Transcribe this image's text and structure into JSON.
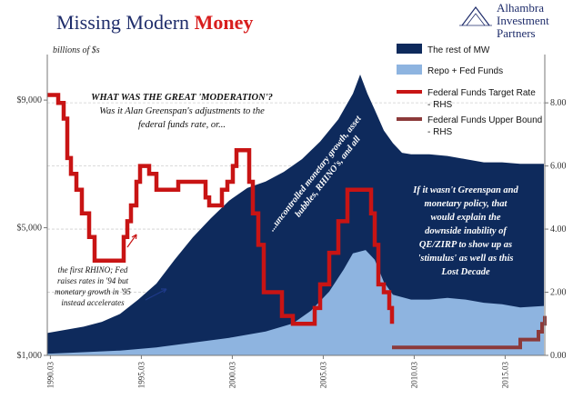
{
  "header": {
    "title_part1": "Missing Modern ",
    "title_part2": "Money",
    "brand_lines": [
      "Alhambra",
      "Investment",
      "Partners"
    ]
  },
  "chart_data": {
    "type": "area",
    "unit_label": "billions of $s",
    "left_axis": {
      "ticks": [
        "$1,000",
        "$5,000",
        "$9,000"
      ],
      "values": [
        1000,
        5000,
        9000
      ],
      "range": [
        1000,
        10200
      ]
    },
    "right_axis": {
      "ticks": [
        "0.00",
        "2.00",
        "4.00",
        "6.00",
        "8.00"
      ],
      "values": [
        0,
        2,
        4,
        6,
        8
      ],
      "range": [
        0,
        9.3
      ]
    },
    "x_ticks": [
      "1990.03",
      "1995.03",
      "2000.03",
      "2005.03",
      "2010.03",
      "2015.03"
    ],
    "x_tick_years": [
      1990.17,
      1995.17,
      2000.17,
      2005.17,
      2010.17,
      2015.17
    ],
    "x_range": [
      1990.0,
      2017.35
    ],
    "colors": {
      "rest_of_mw": "#0e2a5c",
      "repo_fed_funds": "#8eb4e0",
      "fed_target": "#c81414",
      "fed_upper": "#8c3a3a"
    },
    "legend": [
      {
        "name": "The rest of MW",
        "type": "area"
      },
      {
        "name": "Repo + Fed Funds",
        "type": "area"
      },
      {
        "name": "Federal Funds Target Rate - RHS",
        "type": "line"
      },
      {
        "name": "Federal Funds Upper Bound - RHS",
        "type": "line"
      }
    ],
    "series": [
      {
        "name": "The rest of MW",
        "axis": "left",
        "note": "total stacked level",
        "x": [
          1990.0,
          1991.0,
          1992.0,
          1993.0,
          1994.0,
          1995.0,
          1996.0,
          1997.0,
          1998.0,
          1999.0,
          2000.0,
          2001.0,
          2002.0,
          2003.0,
          2004.0,
          2005.0,
          2006.0,
          2006.8,
          2007.2,
          2007.6,
          2008.0,
          2008.5,
          2009.0,
          2009.5,
          2010.0,
          2011.0,
          2012.0,
          2013.0,
          2014.0,
          2015.0,
          2016.0,
          2017.3
        ],
        "values": [
          1700,
          1800,
          1900,
          2050,
          2300,
          2750,
          3250,
          4000,
          4700,
          5300,
          5850,
          6250,
          6450,
          6750,
          7150,
          7700,
          8400,
          9200,
          9800,
          9200,
          8700,
          8050,
          7650,
          7350,
          7300,
          7300,
          7250,
          7150,
          7050,
          7050,
          7000,
          7000
        ]
      },
      {
        "name": "Repo + Fed Funds",
        "axis": "left",
        "x": [
          1990.0,
          1992.0,
          1994.0,
          1996.0,
          1998.0,
          2000.0,
          2002.0,
          2003.5,
          2004.5,
          2005.5,
          2006.3,
          2006.8,
          2007.5,
          2008.0,
          2008.5,
          2009.0,
          2010.0,
          2011.0,
          2012.0,
          2013.0,
          2014.0,
          2015.0,
          2016.0,
          2017.3
        ],
        "values": [
          1050,
          1100,
          1150,
          1250,
          1400,
          1550,
          1750,
          2000,
          2400,
          3000,
          3700,
          4200,
          4300,
          4000,
          3300,
          2900,
          2750,
          2750,
          2800,
          2750,
          2650,
          2600,
          2500,
          2550
        ]
      },
      {
        "name": "Federal Funds Target Rate - RHS",
        "axis": "right",
        "x": [
          1990.0,
          1990.6,
          1990.9,
          1991.1,
          1991.3,
          1991.6,
          1991.9,
          1992.3,
          1992.6,
          1994.0,
          1994.2,
          1994.4,
          1994.6,
          1994.9,
          1995.1,
          1995.6,
          1996.0,
          1996.6,
          1997.2,
          1998.7,
          1998.9,
          1999.2,
          1999.6,
          1999.9,
          2000.2,
          2000.4,
          2000.9,
          2001.1,
          2001.3,
          2001.6,
          2001.9,
          2002.9,
          2003.5,
          2004.5,
          2004.7,
          2005.0,
          2005.5,
          2006.0,
          2006.5,
          2007.6,
          2007.8,
          2008.0,
          2008.2,
          2008.5,
          2008.8,
          2008.95
        ],
        "values": [
          8.25,
          8.0,
          7.5,
          6.25,
          5.75,
          5.25,
          4.5,
          3.75,
          3.0,
          3.0,
          3.75,
          4.25,
          4.75,
          5.5,
          6.0,
          5.75,
          5.25,
          5.25,
          5.5,
          5.0,
          4.75,
          4.75,
          5.25,
          5.5,
          6.0,
          6.5,
          6.5,
          5.5,
          4.5,
          3.5,
          2.0,
          1.25,
          1.0,
          1.0,
          1.5,
          2.25,
          3.25,
          4.25,
          5.25,
          5.25,
          4.5,
          3.5,
          2.25,
          2.0,
          1.5,
          1.0
        ]
      },
      {
        "name": "Federal Funds Upper Bound - RHS",
        "axis": "right",
        "x": [
          2008.95,
          2015.9,
          2016.0,
          2016.9,
          2017.0,
          2017.2,
          2017.35
        ],
        "values": [
          0.25,
          0.25,
          0.5,
          0.5,
          0.75,
          1.0,
          1.25
        ]
      }
    ],
    "annotations": {
      "moderation_head": "WHAT WAS THE GREAT 'MODERATION'?",
      "moderation_lines": [
        "Was it Alan Greenspan's adjustments to the",
        "federal funds rate, or..."
      ],
      "rhino_lines": [
        "the first RHINO; Fed",
        "raises rates in '94 but",
        "monetary growth in '95",
        "instead accelerates"
      ],
      "uncontrolled_lines": [
        "...uncontrolled monetary growth, asset",
        "bubbles, RHINO's, and all"
      ],
      "greenspan_lines": [
        "If it wasn't Greenspan and",
        "monetary policy, that",
        "would explain the",
        "downside inability of",
        "QE/ZIRP to show up as",
        "'stimulus' as well as this",
        "Lost Decade"
      ]
    }
  }
}
